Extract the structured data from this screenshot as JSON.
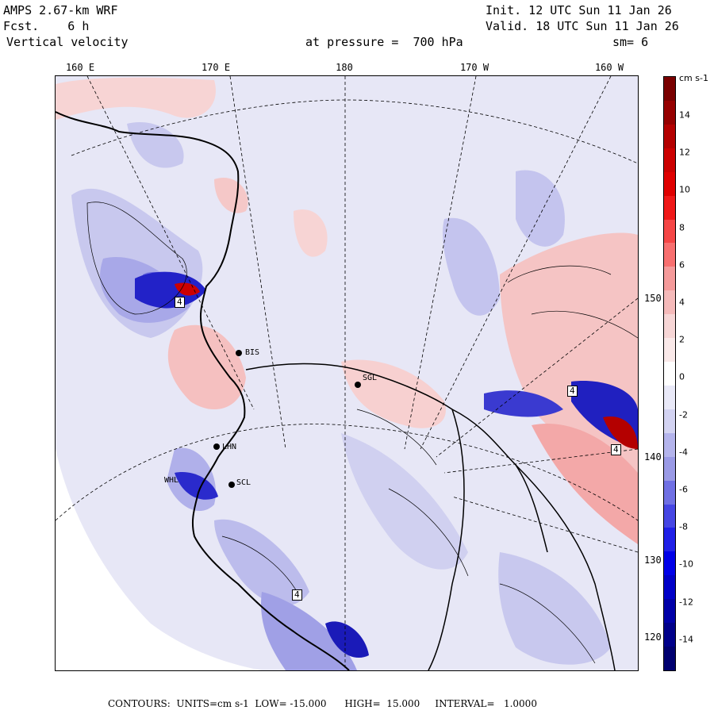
{
  "header": {
    "model": "AMPS 2.67-km WRF",
    "forecast": "Fcst.    6 h",
    "field": "Vertical velocity",
    "init": "Init. 12 UTC Sun 11 Jan 26",
    "valid": "Valid. 18 UTC Sun 11 Jan 26",
    "level": "at pressure =  700 hPa",
    "smoothing": "sm= 6"
  },
  "top_longitudes": [
    "160 E",
    "170 E",
    "180",
    "170 W",
    "160 W"
  ],
  "right_longitudes": [
    "150 W",
    "140 W",
    "130 W",
    "120 W"
  ],
  "stations": [
    "BIS",
    "SGL",
    "LHN",
    "WHL",
    "SCL"
  ],
  "contour_labels": [
    "4",
    "4",
    "4",
    "4"
  ],
  "colorbar": {
    "unit": "cm s-1",
    "ticks": [
      "14",
      "12",
      "10",
      "8",
      "6",
      "4",
      "2",
      "0",
      "-2",
      "-4",
      "-6",
      "-8",
      "-10",
      "-12",
      "-14"
    ],
    "colors": [
      "#7a0000",
      "#960000",
      "#b40000",
      "#cc0000",
      "#e00000",
      "#f01818",
      "#f54646",
      "#f86f6f",
      "#f59a9a",
      "#f5baba",
      "#f7d6d6",
      "#fae9e9",
      "#ffffff",
      "#e9e9f8",
      "#d3d3f2",
      "#b4b4ec",
      "#9a9ae6",
      "#7070e4",
      "#4646e4",
      "#2020e8",
      "#0000e8",
      "#0000c8",
      "#0000a8",
      "#00008a",
      "#000070"
    ]
  },
  "footer": {
    "text": "CONTOURS:  UNITS=cm s-1  LOW= -15.000      HIGH=  15.000     INTERVAL=   1.0000"
  }
}
